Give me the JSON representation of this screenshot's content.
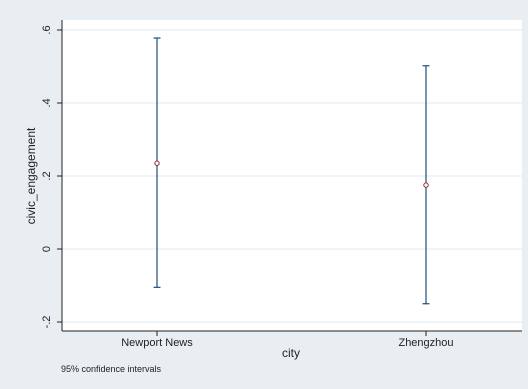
{
  "chart_data": {
    "type": "errorbar",
    "categories": [
      "Newport News",
      "Zhengzhou"
    ],
    "series": [
      {
        "estimates": [
          0.235,
          0.175
        ],
        "ci_lower": [
          -0.105,
          -0.15
        ],
        "ci_upper": [
          0.578,
          0.502
        ]
      }
    ],
    "xlabel": "city",
    "ylabel": "civic_engagement",
    "ylim": [
      -0.2,
      0.6
    ],
    "yticks": [
      -0.2,
      0,
      0.2,
      0.4,
      0.6
    ],
    "ytick_labels": [
      "-.2",
      "0",
      ".2",
      ".4",
      ".6"
    ],
    "grid": true,
    "note": "95% confidence intervals",
    "colors": {
      "background": "#e9eef2",
      "plot_area": "#ffffff",
      "bars": "#1f4e79",
      "markers": "#8b2e2e",
      "grid": "#e3e8ee"
    }
  }
}
